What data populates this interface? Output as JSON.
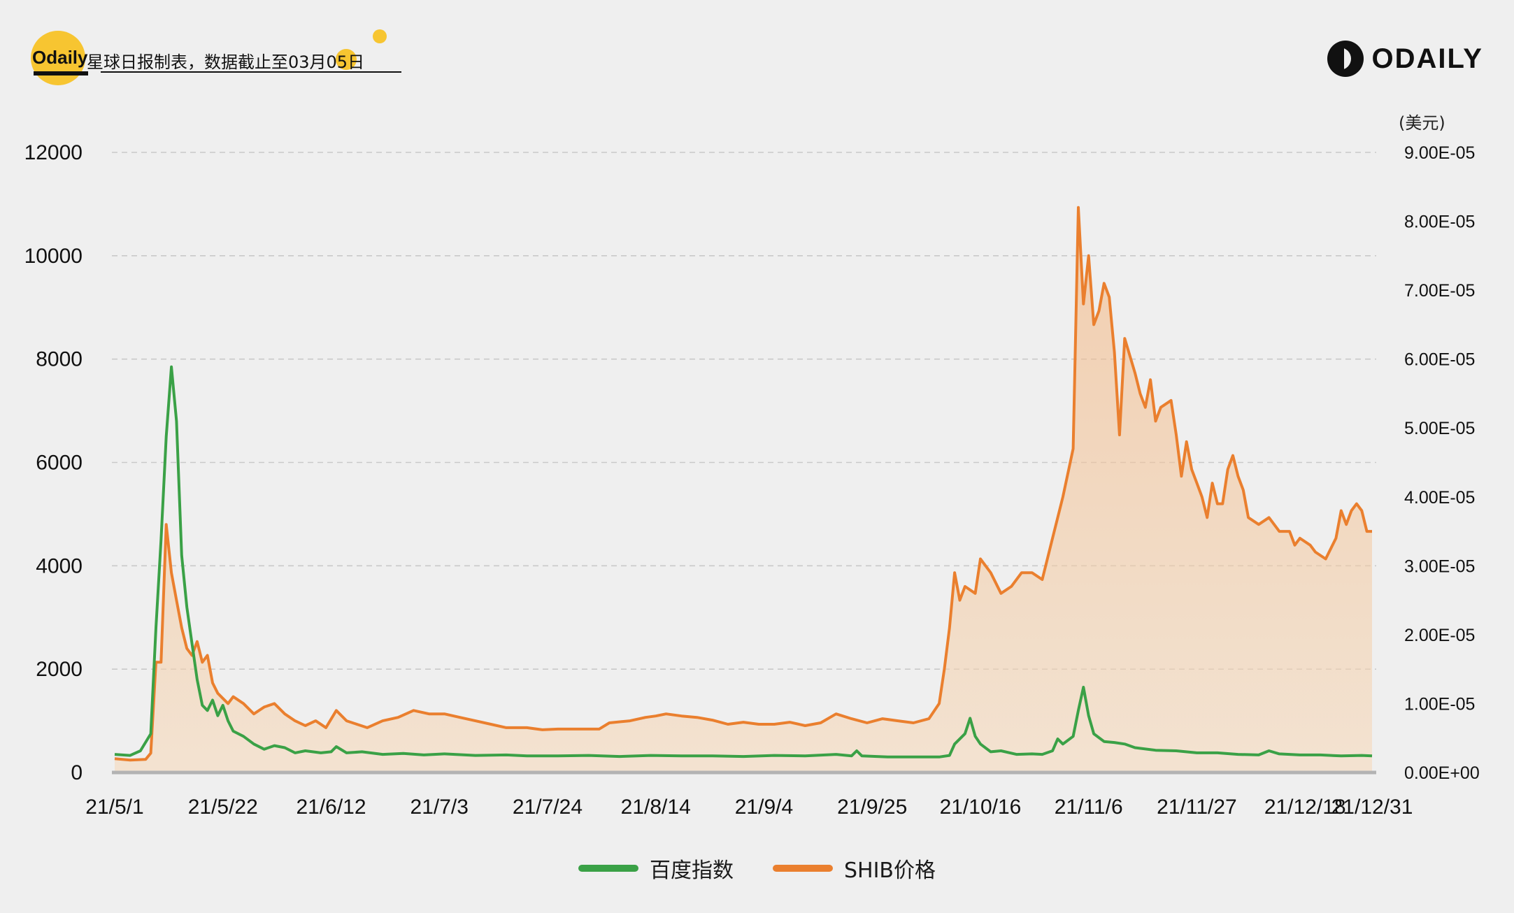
{
  "header": {
    "brand": "Odaily",
    "caption": "星球日报制表，数据截止至03月05日",
    "logo_text": "ODAILY",
    "unit": "(美元)"
  },
  "colors": {
    "green": "#3aa146",
    "orange": "#ea7f2e",
    "orange_fill": "#f6cfa5",
    "grid": "#c9c9c9",
    "baseline": "#b3b3b3"
  },
  "chart_data": {
    "type": "line",
    "x_tick_labels": [
      "21/5/1",
      "21/5/22",
      "21/6/12",
      "21/7/3",
      "21/7/24",
      "21/8/14",
      "21/9/4",
      "21/9/25",
      "21/10/16",
      "21/11/6",
      "21/11/27",
      "21/12/18",
      "21/12/31"
    ],
    "x_tick_days": [
      0,
      21,
      42,
      63,
      84,
      105,
      126,
      147,
      168,
      189,
      210,
      231,
      244
    ],
    "y_left": {
      "ticks": [
        "0",
        "2000",
        "4000",
        "6000",
        "8000",
        "10000",
        "12000"
      ],
      "range": [
        0,
        12000
      ]
    },
    "y_right": {
      "ticks": [
        "0.00E+00",
        "1.00E-05",
        "2.00E-05",
        "3.00E-05",
        "4.00E-05",
        "5.00E-05",
        "6.00E-05",
        "7.00E-05",
        "8.00E-05",
        "9.00E-05"
      ],
      "range": [
        0,
        9e-05
      ]
    },
    "grid": true,
    "legend_position": "bottom-center",
    "series": [
      {
        "name": "百度指数",
        "axis": "left",
        "points": [
          [
            0,
            350
          ],
          [
            3,
            330
          ],
          [
            5,
            420
          ],
          [
            7,
            750
          ],
          [
            8,
            2800
          ],
          [
            9,
            4500
          ],
          [
            10,
            6500
          ],
          [
            11,
            7850
          ],
          [
            12,
            6800
          ],
          [
            13,
            4200
          ],
          [
            14,
            3200
          ],
          [
            15,
            2500
          ],
          [
            16,
            1800
          ],
          [
            17,
            1300
          ],
          [
            18,
            1200
          ],
          [
            19,
            1400
          ],
          [
            20,
            1100
          ],
          [
            21,
            1300
          ],
          [
            22,
            1000
          ],
          [
            23,
            800
          ],
          [
            25,
            700
          ],
          [
            27,
            550
          ],
          [
            29,
            450
          ],
          [
            31,
            520
          ],
          [
            33,
            480
          ],
          [
            35,
            380
          ],
          [
            37,
            420
          ],
          [
            40,
            380
          ],
          [
            42,
            400
          ],
          [
            43,
            500
          ],
          [
            45,
            380
          ],
          [
            48,
            400
          ],
          [
            52,
            350
          ],
          [
            56,
            370
          ],
          [
            60,
            340
          ],
          [
            64,
            360
          ],
          [
            70,
            330
          ],
          [
            76,
            340
          ],
          [
            80,
            320
          ],
          [
            86,
            320
          ],
          [
            92,
            330
          ],
          [
            98,
            310
          ],
          [
            104,
            330
          ],
          [
            110,
            320
          ],
          [
            116,
            320
          ],
          [
            122,
            310
          ],
          [
            128,
            330
          ],
          [
            134,
            320
          ],
          [
            140,
            350
          ],
          [
            143,
            320
          ],
          [
            144,
            420
          ],
          [
            145,
            320
          ],
          [
            150,
            300
          ],
          [
            156,
            300
          ],
          [
            160,
            300
          ],
          [
            162,
            330
          ],
          [
            163,
            550
          ],
          [
            165,
            750
          ],
          [
            166,
            1050
          ],
          [
            167,
            700
          ],
          [
            168,
            550
          ],
          [
            170,
            400
          ],
          [
            172,
            420
          ],
          [
            175,
            350
          ],
          [
            178,
            360
          ],
          [
            180,
            350
          ],
          [
            182,
            420
          ],
          [
            183,
            650
          ],
          [
            184,
            550
          ],
          [
            186,
            700
          ],
          [
            187,
            1200
          ],
          [
            188,
            1650
          ],
          [
            189,
            1100
          ],
          [
            190,
            750
          ],
          [
            192,
            600
          ],
          [
            194,
            580
          ],
          [
            196,
            550
          ],
          [
            198,
            480
          ],
          [
            202,
            430
          ],
          [
            206,
            420
          ],
          [
            210,
            380
          ],
          [
            214,
            380
          ],
          [
            218,
            350
          ],
          [
            222,
            340
          ],
          [
            224,
            420
          ],
          [
            226,
            360
          ],
          [
            230,
            340
          ],
          [
            234,
            340
          ],
          [
            238,
            320
          ],
          [
            242,
            330
          ],
          [
            244,
            320
          ]
        ]
      },
      {
        "name": "SHIB价格",
        "axis": "right",
        "points": [
          [
            0,
            2e-06
          ],
          [
            3,
            1.8e-06
          ],
          [
            6,
            1.9e-06
          ],
          [
            7,
            2.8e-06
          ],
          [
            8,
            1.6e-05
          ],
          [
            9,
            1.6e-05
          ],
          [
            10,
            3.6e-05
          ],
          [
            11,
            2.9e-05
          ],
          [
            12,
            2.5e-05
          ],
          [
            13,
            2.1e-05
          ],
          [
            14,
            1.8e-05
          ],
          [
            15,
            1.7e-05
          ],
          [
            16,
            1.9e-05
          ],
          [
            17,
            1.6e-05
          ],
          [
            18,
            1.7e-05
          ],
          [
            19,
            1.3e-05
          ],
          [
            20,
            1.15e-05
          ],
          [
            22,
            1e-05
          ],
          [
            23,
            1.1e-05
          ],
          [
            25,
            1e-05
          ],
          [
            27,
            8.5e-06
          ],
          [
            29,
            9.5e-06
          ],
          [
            31,
            1e-05
          ],
          [
            33,
            8.5e-06
          ],
          [
            35,
            7.5e-06
          ],
          [
            37,
            6.8e-06
          ],
          [
            39,
            7.5e-06
          ],
          [
            41,
            6.5e-06
          ],
          [
            43,
            9e-06
          ],
          [
            45,
            7.5e-06
          ],
          [
            47,
            7e-06
          ],
          [
            49,
            6.5e-06
          ],
          [
            52,
            7.5e-06
          ],
          [
            55,
            8e-06
          ],
          [
            58,
            9e-06
          ],
          [
            61,
            8.5e-06
          ],
          [
            64,
            8.5e-06
          ],
          [
            67,
            8e-06
          ],
          [
            70,
            7.5e-06
          ],
          [
            73,
            7e-06
          ],
          [
            76,
            6.5e-06
          ],
          [
            80,
            6.5e-06
          ],
          [
            83,
            6.2e-06
          ],
          [
            86,
            6.3e-06
          ],
          [
            90,
            6.3e-06
          ],
          [
            94,
            6.3e-06
          ],
          [
            96,
            7.2e-06
          ],
          [
            100,
            7.5e-06
          ],
          [
            103,
            8e-06
          ],
          [
            105,
            8.2e-06
          ],
          [
            107,
            8.5e-06
          ],
          [
            110,
            8.2e-06
          ],
          [
            113,
            8e-06
          ],
          [
            116,
            7.6e-06
          ],
          [
            119,
            7e-06
          ],
          [
            122,
            7.3e-06
          ],
          [
            125,
            7e-06
          ],
          [
            128,
            7e-06
          ],
          [
            131,
            7.3e-06
          ],
          [
            134,
            6.8e-06
          ],
          [
            137,
            7.2e-06
          ],
          [
            140,
            8.5e-06
          ],
          [
            143,
            7.8e-06
          ],
          [
            146,
            7.2e-06
          ],
          [
            149,
            7.8e-06
          ],
          [
            152,
            7.5e-06
          ],
          [
            155,
            7.2e-06
          ],
          [
            158,
            7.8e-06
          ],
          [
            160,
            1e-05
          ],
          [
            161,
            1.5e-05
          ],
          [
            162,
            2.1e-05
          ],
          [
            163,
            2.9e-05
          ],
          [
            164,
            2.5e-05
          ],
          [
            165,
            2.7e-05
          ],
          [
            167,
            2.6e-05
          ],
          [
            168,
            3.1e-05
          ],
          [
            170,
            2.9e-05
          ],
          [
            172,
            2.6e-05
          ],
          [
            174,
            2.7e-05
          ],
          [
            176,
            2.9e-05
          ],
          [
            178,
            2.9e-05
          ],
          [
            180,
            2.8e-05
          ],
          [
            182,
            3.4e-05
          ],
          [
            184,
            4e-05
          ],
          [
            186,
            4.7e-05
          ],
          [
            187,
            8.2e-05
          ],
          [
            188,
            6.8e-05
          ],
          [
            189,
            7.5e-05
          ],
          [
            190,
            6.5e-05
          ],
          [
            191,
            6.7e-05
          ],
          [
            192,
            7.1e-05
          ],
          [
            193,
            6.9e-05
          ],
          [
            194,
            6.1e-05
          ],
          [
            195,
            4.9e-05
          ],
          [
            196,
            6.3e-05
          ],
          [
            198,
            5.8e-05
          ],
          [
            199,
            5.5e-05
          ],
          [
            200,
            5.3e-05
          ],
          [
            201,
            5.7e-05
          ],
          [
            202,
            5.1e-05
          ],
          [
            203,
            5.3e-05
          ],
          [
            205,
            5.4e-05
          ],
          [
            206,
            4.9e-05
          ],
          [
            207,
            4.3e-05
          ],
          [
            208,
            4.8e-05
          ],
          [
            209,
            4.4e-05
          ],
          [
            210,
            4.2e-05
          ],
          [
            211,
            4e-05
          ],
          [
            212,
            3.7e-05
          ],
          [
            213,
            4.2e-05
          ],
          [
            214,
            3.9e-05
          ],
          [
            215,
            3.9e-05
          ],
          [
            216,
            4.4e-05
          ],
          [
            217,
            4.6e-05
          ],
          [
            218,
            4.3e-05
          ],
          [
            219,
            4.1e-05
          ],
          [
            220,
            3.7e-05
          ],
          [
            222,
            3.6e-05
          ],
          [
            224,
            3.7e-05
          ],
          [
            226,
            3.5e-05
          ],
          [
            228,
            3.5e-05
          ],
          [
            229,
            3.3e-05
          ],
          [
            230,
            3.4e-05
          ],
          [
            232,
            3.3e-05
          ],
          [
            233,
            3.2e-05
          ],
          [
            235,
            3.1e-05
          ],
          [
            237,
            3.4e-05
          ],
          [
            238,
            3.8e-05
          ],
          [
            239,
            3.6e-05
          ],
          [
            240,
            3.8e-05
          ],
          [
            241,
            3.9e-05
          ],
          [
            242,
            3.8e-05
          ],
          [
            243,
            3.5e-05
          ],
          [
            244,
            3.5e-05
          ]
        ]
      }
    ]
  }
}
